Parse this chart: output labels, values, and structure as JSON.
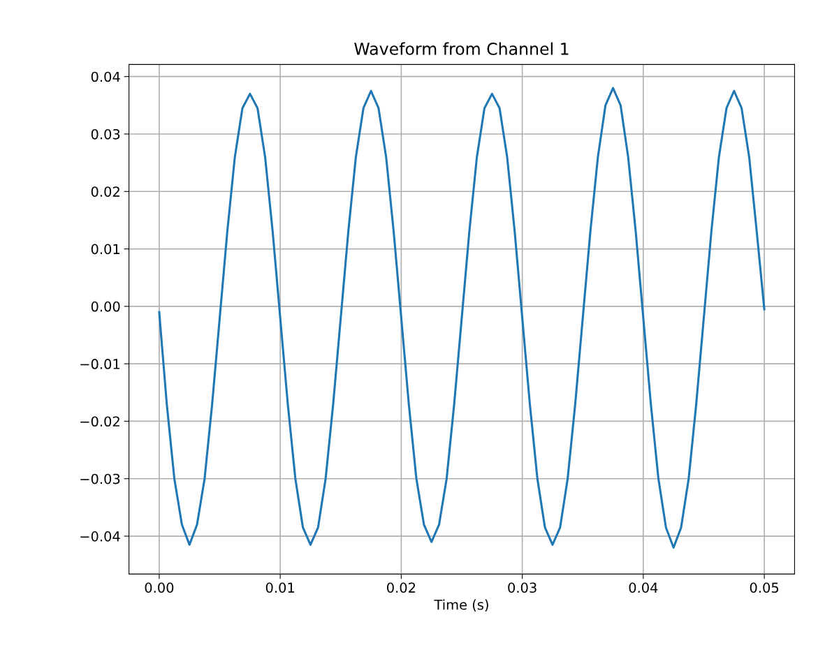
{
  "chart_data": {
    "type": "line",
    "title": "Waveform from Channel 1",
    "xlabel": "Time (s)",
    "x": [
      0,
      0.000625,
      0.00125,
      0.001875,
      0.0025,
      0.003125,
      0.00375,
      0.004375,
      0.005,
      0.005625,
      0.00625,
      0.006875,
      0.0075,
      0.008125,
      0.00875,
      0.009375,
      0.01,
      0.010625,
      0.01125,
      0.011875,
      0.0125,
      0.013125,
      0.01375,
      0.014375,
      0.015,
      0.015625,
      0.01625,
      0.016875,
      0.0175,
      0.018125,
      0.01875,
      0.019375,
      0.02,
      0.020625,
      0.02125,
      0.021875,
      0.0225,
      0.023125,
      0.02375,
      0.024375,
      0.025,
      0.025625,
      0.02625,
      0.026875,
      0.0275,
      0.028125,
      0.02875,
      0.029375,
      0.03,
      0.030625,
      0.03125,
      0.031875,
      0.0325,
      0.033125,
      0.03375,
      0.034375,
      0.035,
      0.035625,
      0.03625,
      0.036875,
      0.0375,
      0.038125,
      0.03875,
      0.039375,
      0.04,
      0.040625,
      0.04125,
      0.041875,
      0.0425,
      0.043125,
      0.04375,
      0.044375,
      0.045,
      0.045625,
      0.04625,
      0.046875,
      0.0475,
      0.048125,
      0.04875,
      0.049375,
      0.05
    ],
    "series": [
      {
        "color": "#1f77b4",
        "values": [
          -0.001,
          -0.017,
          -0.03,
          -0.038,
          -0.0415,
          -0.038,
          -0.03,
          -0.017,
          -0.002,
          0.013,
          0.026,
          0.0345,
          0.037,
          0.0345,
          0.026,
          0.013,
          -0.002,
          -0.017,
          -0.03,
          -0.0385,
          -0.0415,
          -0.0385,
          -0.03,
          -0.017,
          -0.002,
          0.013,
          0.026,
          0.0345,
          0.0375,
          0.0345,
          0.026,
          0.013,
          -0.002,
          -0.017,
          -0.03,
          -0.038,
          -0.041,
          -0.038,
          -0.03,
          -0.017,
          -0.002,
          0.013,
          0.026,
          0.0345,
          0.037,
          0.0345,
          0.026,
          0.013,
          -0.002,
          -0.017,
          -0.03,
          -0.0385,
          -0.0415,
          -0.0385,
          -0.03,
          -0.017,
          -0.002,
          0.013,
          0.026,
          0.035,
          0.038,
          0.035,
          0.026,
          0.013,
          -0.002,
          -0.017,
          -0.03,
          -0.0385,
          -0.042,
          -0.0385,
          -0.03,
          -0.017,
          -0.002,
          0.013,
          0.026,
          0.0345,
          0.0375,
          0.0345,
          0.026,
          0.013,
          -0.0005
        ]
      }
    ],
    "xlim": [
      -0.0025,
      0.0525
    ],
    "ylim": [
      -0.0466,
      0.0421
    ],
    "xticks": [
      {
        "value": 0,
        "label": "0.00"
      },
      {
        "value": 0.01,
        "label": "0.01"
      },
      {
        "value": 0.02,
        "label": "0.02"
      },
      {
        "value": 0.03,
        "label": "0.03"
      },
      {
        "value": 0.04,
        "label": "0.04"
      },
      {
        "value": 0.05,
        "label": "0.05"
      }
    ],
    "yticks": [
      {
        "value": -0.04,
        "label": "−0.04"
      },
      {
        "value": -0.03,
        "label": "−0.03"
      },
      {
        "value": -0.02,
        "label": "−0.02"
      },
      {
        "value": -0.01,
        "label": "−0.01"
      },
      {
        "value": 0,
        "label": "0.00"
      },
      {
        "value": 0.01,
        "label": "0.01"
      },
      {
        "value": 0.02,
        "label": "0.02"
      },
      {
        "value": 0.03,
        "label": "0.03"
      },
      {
        "value": 0.04,
        "label": "0.04"
      }
    ],
    "grid": true
  }
}
